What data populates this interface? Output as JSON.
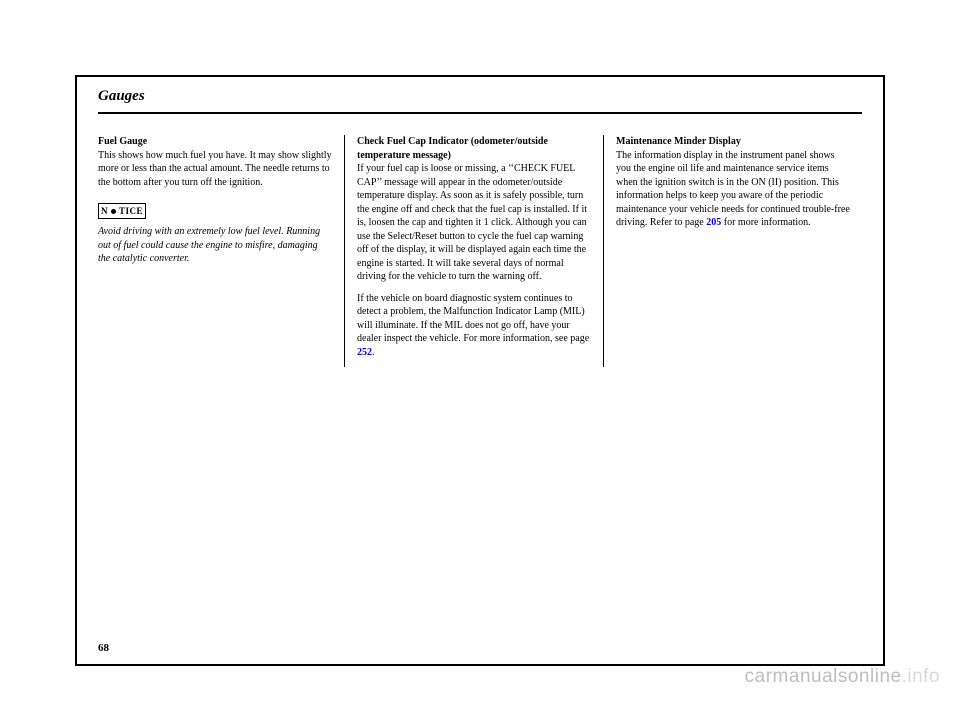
{
  "section_title": "Gauges",
  "page_number": "68",
  "watermark_main": "carmanualsonline",
  "watermark_suffix": ".info",
  "notice_label_left": "N",
  "notice_label_right": "TICE",
  "col1": {
    "heading": "Fuel Gauge",
    "p1": "This shows how much fuel you have. It may show slightly more or less than the actual amount. The needle returns to the bottom after you turn off the ignition.",
    "p2": "Avoid driving with an extremely low fuel level. Running out of fuel could cause the engine to misfire, damaging the catalytic converter."
  },
  "col2": {
    "heading": "Check Fuel Cap Indicator (odometer/outside temperature message)",
    "p1a": "If your fuel cap is loose or missing, a ‘‘CHECK FUEL CAP’’ message will appear in the odometer/outside temperature display. As soon as it is safely possible, turn the engine off and check that the fuel cap is installed. If it is, loosen the cap and tighten it 1 click. Although you can use the Select/Reset button to cycle the fuel cap warning off of the display, it will be displayed again each time the engine is started. It will take several days of normal driving for the vehicle to turn the warning off.",
    "p2a": "If the vehicle on board diagnostic system continues to detect a problem, the Malfunction Indicator Lamp (MIL) will illuminate. If the MIL does not go off, have your dealer inspect the vehicle. For more information, see page",
    "p2_link": "252",
    "p2_end": "."
  },
  "col3": {
    "heading": "Maintenance Minder Display",
    "p1a": "The information display in the instrument panel shows you the engine oil life and maintenance service items when the ignition switch is in the ON (II) position. This information helps to keep you aware of the periodic maintenance your vehicle needs for continued trouble-free driving. Refer to page",
    "p1_link": "205",
    "p1_end": " for more information."
  }
}
